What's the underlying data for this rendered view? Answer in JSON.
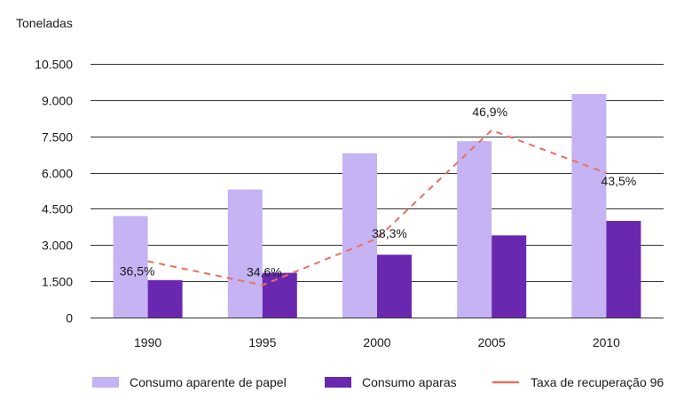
{
  "chart_data": {
    "type": "bar",
    "unit_label": "Toneladas",
    "categories": [
      "1990",
      "1995",
      "2000",
      "2005",
      "2010"
    ],
    "y_ticks": [
      "0",
      "1.500",
      "3.000",
      "4.500",
      "6.000",
      "7.500",
      "9.000",
      "10.500"
    ],
    "y_tick_values": [
      0,
      1500,
      3000,
      4500,
      6000,
      7500,
      9000,
      10500
    ],
    "ylim": [
      0,
      10500
    ],
    "grid": true,
    "legend_position": "bottom",
    "series": [
      {
        "name": "Consumo aparente de papel",
        "type": "bar",
        "color": "#c5b3f4",
        "values": [
          4200,
          5300,
          6800,
          7300,
          9250
        ]
      },
      {
        "name": "Consumo aparas",
        "type": "bar",
        "color": "#6a28b0",
        "values": [
          1550,
          1850,
          2600,
          3400,
          4000
        ]
      },
      {
        "name": "Taxa de recuperação 96",
        "type": "line",
        "style": "dashed",
        "color": "#e8705f",
        "values": [
          36.5,
          34.6,
          38.3,
          46.9,
          43.5
        ],
        "labels": [
          "36,5%",
          "34,6%",
          "38,3%",
          "46,9%",
          "43,5%"
        ]
      }
    ]
  }
}
